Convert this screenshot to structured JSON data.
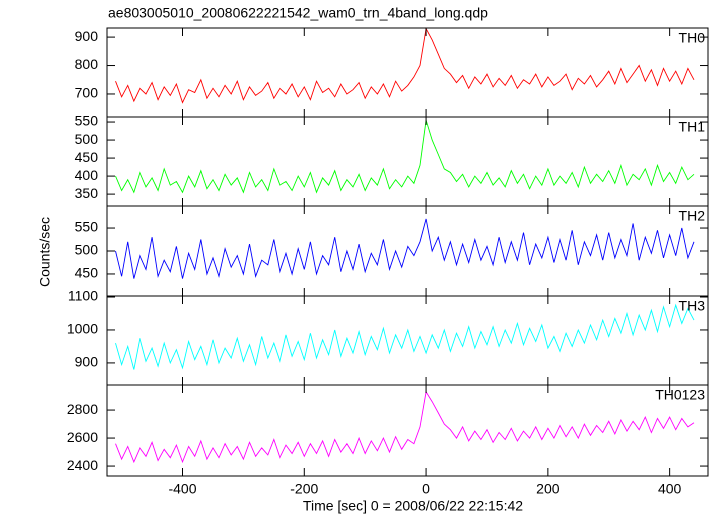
{
  "chart_data": [
    {
      "type": "line",
      "title": "ae803005010_20080622221542_wam0_trn_4band_long.qdp",
      "ylabel": "Counts/sec",
      "name": "TH0",
      "color": "#ff0000",
      "x": [
        -510,
        -500,
        -490,
        -480,
        -470,
        -460,
        -450,
        -440,
        -430,
        -420,
        -410,
        -400,
        -390,
        -380,
        -370,
        -360,
        -350,
        -340,
        -330,
        -320,
        -310,
        -300,
        -290,
        -280,
        -270,
        -260,
        -250,
        -240,
        -230,
        -220,
        -210,
        -200,
        -190,
        -180,
        -170,
        -160,
        -150,
        -140,
        -130,
        -120,
        -110,
        -100,
        -90,
        -80,
        -70,
        -60,
        -50,
        -40,
        -30,
        -20,
        -10,
        0,
        10,
        20,
        30,
        40,
        50,
        60,
        70,
        80,
        90,
        100,
        110,
        120,
        130,
        140,
        150,
        160,
        170,
        180,
        190,
        200,
        210,
        220,
        230,
        240,
        250,
        260,
        270,
        280,
        290,
        300,
        310,
        320,
        330,
        340,
        350,
        360,
        370,
        380,
        390,
        400,
        410,
        420,
        430,
        440
      ],
      "values": [
        745,
        690,
        730,
        675,
        720,
        700,
        740,
        680,
        725,
        695,
        735,
        670,
        715,
        705,
        750,
        685,
        720,
        690,
        730,
        700,
        745,
        680,
        725,
        695,
        710,
        740,
        685,
        720,
        700,
        735,
        690,
        725,
        680,
        745,
        705,
        720,
        690,
        735,
        700,
        715,
        740,
        685,
        725,
        700,
        735,
        690,
        745,
        710,
        730,
        760,
        800,
        930,
        890,
        840,
        790,
        770,
        740,
        765,
        720,
        760,
        735,
        770,
        725,
        755,
        730,
        765,
        720,
        750,
        735,
        770,
        725,
        760,
        730,
        745,
        770,
        715,
        755,
        735,
        765,
        725,
        750,
        780,
        735,
        790,
        740,
        770,
        800,
        745,
        785,
        730,
        790,
        745,
        780,
        735,
        790,
        750
      ],
      "ylim": [
        619,
        932
      ],
      "yticks": [
        700,
        800,
        900
      ]
    },
    {
      "type": "line",
      "name": "TH1",
      "color": "#00ff00",
      "x": [
        -510,
        -500,
        -490,
        -480,
        -470,
        -460,
        -450,
        -440,
        -430,
        -420,
        -410,
        -400,
        -390,
        -380,
        -370,
        -360,
        -350,
        -340,
        -330,
        -320,
        -310,
        -300,
        -290,
        -280,
        -270,
        -260,
        -250,
        -240,
        -230,
        -220,
        -210,
        -200,
        -190,
        -180,
        -170,
        -160,
        -150,
        -140,
        -130,
        -120,
        -110,
        -100,
        -90,
        -80,
        -70,
        -60,
        -50,
        -40,
        -30,
        -20,
        -10,
        0,
        10,
        20,
        30,
        40,
        50,
        60,
        70,
        80,
        90,
        100,
        110,
        120,
        130,
        140,
        150,
        160,
        170,
        180,
        190,
        200,
        210,
        220,
        230,
        240,
        250,
        260,
        270,
        280,
        290,
        300,
        310,
        320,
        330,
        340,
        350,
        360,
        370,
        380,
        390,
        400,
        410,
        420,
        430,
        440
      ],
      "values": [
        400,
        360,
        390,
        355,
        410,
        370,
        395,
        360,
        420,
        375,
        385,
        355,
        400,
        370,
        415,
        365,
        390,
        360,
        405,
        375,
        395,
        355,
        410,
        370,
        390,
        360,
        420,
        375,
        385,
        360,
        400,
        370,
        410,
        355,
        395,
        375,
        415,
        360,
        390,
        370,
        405,
        360,
        395,
        375,
        420,
        365,
        390,
        370,
        400,
        380,
        430,
        555,
        500,
        460,
        420,
        410,
        385,
        405,
        370,
        400,
        380,
        410,
        375,
        395,
        370,
        415,
        380,
        405,
        365,
        400,
        375,
        420,
        375,
        400,
        380,
        410,
        370,
        425,
        380,
        405,
        385,
        415,
        380,
        430,
        375,
        405,
        390,
        420,
        375,
        430,
        385,
        410,
        380,
        425,
        390,
        405
      ],
      "ylim": [
        317,
        564
      ],
      "yticks": [
        350,
        400,
        450,
        500,
        550
      ]
    },
    {
      "type": "line",
      "name": "TH2",
      "color": "#0000ff",
      "x": [
        -510,
        -500,
        -490,
        -480,
        -470,
        -460,
        -450,
        -440,
        -430,
        -420,
        -410,
        -400,
        -390,
        -380,
        -370,
        -360,
        -350,
        -340,
        -330,
        -320,
        -310,
        -300,
        -290,
        -280,
        -270,
        -260,
        -250,
        -240,
        -230,
        -220,
        -210,
        -200,
        -190,
        -180,
        -170,
        -160,
        -150,
        -140,
        -130,
        -120,
        -110,
        -100,
        -90,
        -80,
        -70,
        -60,
        -50,
        -40,
        -30,
        -20,
        -10,
        0,
        10,
        20,
        30,
        40,
        50,
        60,
        70,
        80,
        90,
        100,
        110,
        120,
        130,
        140,
        150,
        160,
        170,
        180,
        190,
        200,
        210,
        220,
        230,
        240,
        250,
        260,
        270,
        280,
        290,
        300,
        310,
        320,
        330,
        340,
        350,
        360,
        370,
        380,
        390,
        400,
        410,
        420,
        430,
        440
      ],
      "values": [
        500,
        445,
        520,
        440,
        490,
        460,
        530,
        445,
        480,
        455,
        510,
        440,
        495,
        460,
        525,
        450,
        485,
        445,
        505,
        465,
        490,
        450,
        515,
        445,
        480,
        470,
        525,
        455,
        495,
        450,
        505,
        460,
        520,
        450,
        490,
        470,
        530,
        455,
        500,
        460,
        515,
        455,
        495,
        470,
        525,
        460,
        500,
        465,
        510,
        490,
        520,
        570,
        500,
        530,
        480,
        520,
        470,
        515,
        475,
        525,
        480,
        510,
        470,
        530,
        475,
        520,
        480,
        540,
        470,
        515,
        485,
        530,
        475,
        525,
        480,
        545,
        470,
        520,
        490,
        535,
        480,
        540,
        485,
        525,
        490,
        560,
        480,
        530,
        495,
        545,
        485,
        535,
        490,
        550,
        485,
        520
      ],
      "ylim": [
        402,
        598
      ],
      "yticks": [
        450,
        500,
        550
      ]
    },
    {
      "type": "line",
      "name": "TH3",
      "color": "#00ffff",
      "x": [
        -510,
        -500,
        -490,
        -480,
        -470,
        -460,
        -450,
        -440,
        -430,
        -420,
        -410,
        -400,
        -390,
        -380,
        -370,
        -360,
        -350,
        -340,
        -330,
        -320,
        -310,
        -300,
        -290,
        -280,
        -270,
        -260,
        -250,
        -240,
        -230,
        -220,
        -210,
        -200,
        -190,
        -180,
        -170,
        -160,
        -150,
        -140,
        -130,
        -120,
        -110,
        -100,
        -90,
        -80,
        -70,
        -60,
        -50,
        -40,
        -30,
        -20,
        -10,
        0,
        10,
        20,
        30,
        40,
        50,
        60,
        70,
        80,
        90,
        100,
        110,
        120,
        130,
        140,
        150,
        160,
        170,
        180,
        190,
        200,
        210,
        220,
        230,
        240,
        250,
        260,
        270,
        280,
        290,
        300,
        310,
        320,
        330,
        340,
        350,
        360,
        370,
        380,
        390,
        400,
        410,
        420,
        430,
        440
      ],
      "values": [
        960,
        895,
        950,
        880,
        975,
        905,
        945,
        890,
        960,
        900,
        940,
        885,
        965,
        910,
        950,
        895,
        970,
        900,
        945,
        915,
        975,
        905,
        955,
        895,
        980,
        915,
        960,
        905,
        985,
        920,
        965,
        910,
        990,
        915,
        970,
        925,
        1000,
        920,
        975,
        930,
        995,
        925,
        980,
        940,
        1005,
        930,
        985,
        945,
        1000,
        935,
        980,
        930,
        985,
        945,
        1000,
        935,
        990,
        950,
        1010,
        945,
        995,
        955,
        1010,
        950,
        1000,
        960,
        1020,
        955,
        1005,
        965,
        1015,
        945,
        980,
        935,
        990,
        950,
        1000,
        960,
        1015,
        970,
        1030,
        980,
        1035,
        990,
        1050,
        985,
        1045,
        1000,
        1060,
        995,
        1070,
        1010,
        1075,
        1020,
        1065,
        1030
      ],
      "ylim": [
        833,
        1103
      ],
      "yticks": [
        900,
        1000,
        1100
      ]
    },
    {
      "type": "line",
      "name": "TH0123",
      "color": "#ff00ff",
      "xlabel": "Time [sec] 0 = 2008/06/22 22:15:42",
      "x": [
        -510,
        -500,
        -490,
        -480,
        -470,
        -460,
        -450,
        -440,
        -430,
        -420,
        -410,
        -400,
        -390,
        -380,
        -370,
        -360,
        -350,
        -340,
        -330,
        -320,
        -310,
        -300,
        -290,
        -280,
        -270,
        -260,
        -250,
        -240,
        -230,
        -220,
        -210,
        -200,
        -190,
        -180,
        -170,
        -160,
        -150,
        -140,
        -130,
        -120,
        -110,
        -100,
        -90,
        -80,
        -70,
        -60,
        -50,
        -40,
        -30,
        -20,
        -10,
        0,
        10,
        20,
        30,
        40,
        50,
        60,
        70,
        80,
        90,
        100,
        110,
        120,
        130,
        140,
        150,
        160,
        170,
        180,
        190,
        200,
        210,
        220,
        230,
        240,
        250,
        260,
        270,
        280,
        290,
        300,
        310,
        320,
        330,
        340,
        350,
        360,
        370,
        380,
        390,
        400,
        410,
        420,
        430,
        440
      ],
      "values": [
        2560,
        2450,
        2540,
        2430,
        2530,
        2470,
        2570,
        2440,
        2520,
        2460,
        2550,
        2430,
        2540,
        2470,
        2580,
        2450,
        2530,
        2460,
        2560,
        2480,
        2540,
        2450,
        2570,
        2470,
        2530,
        2480,
        2590,
        2460,
        2550,
        2490,
        2570,
        2470,
        2560,
        2490,
        2580,
        2470,
        2590,
        2500,
        2560,
        2490,
        2600,
        2490,
        2580,
        2510,
        2600,
        2500,
        2610,
        2520,
        2590,
        2560,
        2680,
        2930,
        2860,
        2780,
        2700,
        2660,
        2600,
        2680,
        2580,
        2650,
        2590,
        2660,
        2570,
        2640,
        2590,
        2670,
        2580,
        2650,
        2600,
        2680,
        2590,
        2670,
        2600,
        2690,
        2610,
        2680,
        2600,
        2700,
        2620,
        2690,
        2640,
        2720,
        2630,
        2730,
        2650,
        2720,
        2660,
        2750,
        2640,
        2740,
        2670,
        2750,
        2660,
        2740,
        2680,
        2710
      ],
      "ylim": [
        2329,
        2979
      ],
      "yticks": [
        2400,
        2600,
        2800
      ],
      "xlim": [
        -524,
        463
      ],
      "xticks": [
        -400,
        -200,
        0,
        200,
        400
      ]
    }
  ]
}
